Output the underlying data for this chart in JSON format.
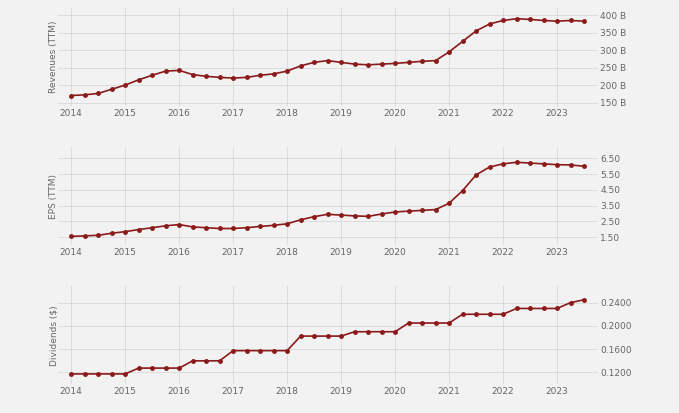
{
  "revenue": {
    "dates": [
      2014.0,
      2014.25,
      2014.5,
      2014.75,
      2015.0,
      2015.25,
      2015.5,
      2015.75,
      2016.0,
      2016.25,
      2016.5,
      2016.75,
      2017.0,
      2017.25,
      2017.5,
      2017.75,
      2018.0,
      2018.25,
      2018.5,
      2018.75,
      2019.0,
      2019.25,
      2019.5,
      2019.75,
      2020.0,
      2020.25,
      2020.5,
      2020.75,
      2021.0,
      2021.25,
      2021.5,
      2021.75,
      2022.0,
      2022.25,
      2022.5,
      2022.75,
      2023.0,
      2023.25,
      2023.5
    ],
    "values": [
      170,
      172,
      176,
      188,
      200,
      215,
      228,
      240,
      242,
      230,
      225,
      222,
      220,
      222,
      228,
      232,
      240,
      255,
      265,
      270,
      265,
      260,
      258,
      260,
      262,
      265,
      268,
      270,
      295,
      325,
      355,
      375,
      385,
      390,
      388,
      385,
      383,
      385,
      383
    ],
    "ylabel": "Revenues (TTM)",
    "yticks": [
      150,
      200,
      250,
      300,
      350,
      400
    ],
    "ytick_labels": [
      "150 B",
      "200 B",
      "250 B",
      "300 B",
      "350 B",
      "400 B"
    ],
    "ylim": [
      140,
      420
    ]
  },
  "eps": {
    "dates": [
      2014.0,
      2014.25,
      2014.5,
      2014.75,
      2015.0,
      2015.25,
      2015.5,
      2015.75,
      2016.0,
      2016.25,
      2016.5,
      2016.75,
      2017.0,
      2017.25,
      2017.5,
      2017.75,
      2018.0,
      2018.25,
      2018.5,
      2018.75,
      2019.0,
      2019.25,
      2019.5,
      2019.75,
      2020.0,
      2020.25,
      2020.5,
      2020.75,
      2021.0,
      2021.25,
      2021.5,
      2021.75,
      2022.0,
      2022.25,
      2022.5,
      2022.75,
      2023.0,
      2023.25,
      2023.5
    ],
    "values": [
      1.55,
      1.58,
      1.62,
      1.75,
      1.85,
      1.98,
      2.1,
      2.22,
      2.3,
      2.15,
      2.1,
      2.05,
      2.05,
      2.1,
      2.18,
      2.25,
      2.35,
      2.6,
      2.8,
      2.95,
      2.9,
      2.85,
      2.82,
      2.97,
      3.1,
      3.15,
      3.2,
      3.25,
      3.65,
      4.45,
      5.45,
      5.95,
      6.15,
      6.25,
      6.2,
      6.15,
      6.1,
      6.08,
      6.0
    ],
    "ylabel": "EPS (TTM)",
    "yticks": [
      1.5,
      2.5,
      3.5,
      4.5,
      5.5,
      6.5
    ],
    "ytick_labels": [
      "1.50",
      "2.50",
      "3.50",
      "4.50",
      "5.50",
      "6.50"
    ],
    "ylim": [
      1.0,
      7.2
    ]
  },
  "dividends": {
    "dates": [
      2014.0,
      2014.25,
      2014.5,
      2014.75,
      2015.0,
      2015.25,
      2015.5,
      2015.75,
      2016.0,
      2016.25,
      2016.5,
      2016.75,
      2017.0,
      2017.25,
      2017.5,
      2017.75,
      2018.0,
      2018.25,
      2018.5,
      2018.75,
      2019.0,
      2019.25,
      2019.5,
      2019.75,
      2020.0,
      2020.25,
      2020.5,
      2020.75,
      2021.0,
      2021.25,
      2021.5,
      2021.75,
      2022.0,
      2022.25,
      2022.5,
      2022.75,
      2023.0,
      2023.25,
      2023.5
    ],
    "values": [
      0.1175,
      0.1175,
      0.1175,
      0.1175,
      0.1175,
      0.1275,
      0.1275,
      0.1275,
      0.1275,
      0.14,
      0.14,
      0.14,
      0.1575,
      0.1575,
      0.1575,
      0.1575,
      0.1575,
      0.1825,
      0.1825,
      0.1825,
      0.1825,
      0.19,
      0.19,
      0.19,
      0.19,
      0.205,
      0.205,
      0.205,
      0.205,
      0.22,
      0.22,
      0.22,
      0.22,
      0.23,
      0.23,
      0.23,
      0.23,
      0.24,
      0.245
    ],
    "ylabel": "Dividends ($)",
    "yticks": [
      0.12,
      0.16,
      0.2,
      0.24
    ],
    "ytick_labels": [
      "0.1200",
      "0.1600",
      "0.2000",
      "0.2400"
    ],
    "ylim": [
      0.1,
      0.268
    ]
  },
  "line_color": "#8B1A1A",
  "marker": "o",
  "markersize": 2.5,
  "linewidth": 1.2,
  "bg_color": "#F2F2F2",
  "grid_color": "#D8D8D8",
  "text_color": "#666666",
  "xticks": [
    2014,
    2015,
    2016,
    2017,
    2018,
    2019,
    2020,
    2021,
    2022,
    2023
  ],
  "xlim": [
    2013.75,
    2023.75
  ]
}
